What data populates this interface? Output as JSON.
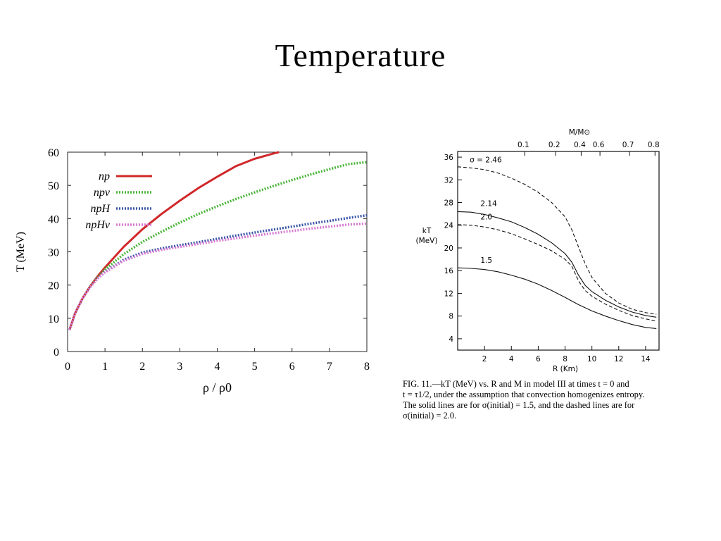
{
  "slide": {
    "title": "Temperature"
  },
  "chart_data": [
    {
      "type": "line",
      "ylabel": "T (MeV)",
      "xlabel": "ρ / ρ0",
      "xlim": [
        0,
        8
      ],
      "ylim": [
        0,
        60
      ],
      "xticks": [
        0,
        1,
        2,
        3,
        4,
        5,
        6,
        7,
        8
      ],
      "yticks": [
        0,
        10,
        20,
        30,
        40,
        50,
        60
      ],
      "legend_position": "top-left",
      "series": [
        {
          "name": "np",
          "color": "#d0282a",
          "style": "solid",
          "x": [
            0.05,
            0.2,
            0.4,
            0.6,
            0.8,
            1.0,
            1.5,
            2.0,
            2.5,
            3.0,
            3.5,
            4.0,
            4.5,
            5.0,
            5.5,
            5.65
          ],
          "y": [
            6.5,
            11.5,
            16.0,
            19.6,
            22.6,
            25.3,
            31.5,
            36.8,
            41.3,
            45.4,
            49.2,
            52.6,
            55.8,
            58.0,
            59.6,
            60.0
          ]
        },
        {
          "name": "npν",
          "color": "#4bb53a",
          "style": "dotted",
          "x": [
            0.05,
            0.2,
            0.4,
            0.6,
            0.8,
            1.0,
            1.5,
            2.0,
            2.5,
            3.0,
            3.5,
            4.0,
            4.5,
            5.0,
            5.5,
            6.0,
            6.5,
            7.0,
            7.5,
            8.0
          ],
          "y": [
            6.5,
            11.5,
            16.0,
            19.5,
            22.3,
            24.7,
            29.3,
            33.0,
            36.0,
            38.8,
            41.4,
            43.7,
            45.9,
            47.9,
            49.8,
            51.6,
            53.3,
            54.9,
            56.4,
            57.0
          ]
        },
        {
          "name": "npH",
          "color": "#3a56a8",
          "style": "dotted",
          "x": [
            0.05,
            0.2,
            0.4,
            0.6,
            0.8,
            1.0,
            1.5,
            2.0,
            2.5,
            3.0,
            3.5,
            4.0,
            4.5,
            5.0,
            5.5,
            6.0,
            6.5,
            7.0,
            7.5,
            8.0
          ],
          "y": [
            6.5,
            11.5,
            16.0,
            19.4,
            22.0,
            24.0,
            27.6,
            29.8,
            31.0,
            32.0,
            32.9,
            33.9,
            34.9,
            35.8,
            36.7,
            37.6,
            38.5,
            39.3,
            40.2,
            41.0
          ]
        },
        {
          "name": "npHν",
          "color": "#d67ad0",
          "style": "dotted",
          "x": [
            0.05,
            0.2,
            0.4,
            0.6,
            0.8,
            1.0,
            1.5,
            2.0,
            2.5,
            3.0,
            3.5,
            4.0,
            4.5,
            5.0,
            5.5,
            6.0,
            6.5,
            7.0,
            7.5,
            8.0
          ],
          "y": [
            6.5,
            11.5,
            16.0,
            19.3,
            21.9,
            23.8,
            27.3,
            29.4,
            30.6,
            31.5,
            32.4,
            33.3,
            34.1,
            34.9,
            35.6,
            36.3,
            37.0,
            37.6,
            38.2,
            38.5
          ]
        }
      ]
    },
    {
      "type": "line",
      "ylabel": "kT\n(MeV)",
      "xlabel": "R (Km)",
      "top_axis_label": "M/M⊙",
      "top_ticks": [
        "0.1",
        "0.2",
        "0.4",
        "0.6",
        "0.7",
        "0.8"
      ],
      "xlim": [
        0,
        15
      ],
      "ylim": [
        2,
        37
      ],
      "xticks": [
        2,
        4,
        6,
        8,
        10,
        12,
        14
      ],
      "yticks": [
        4,
        8,
        12,
        16,
        20,
        24,
        28,
        32,
        36
      ],
      "series": [
        {
          "name": "σ = 2.46",
          "label": "σ = 2.46",
          "style": "dashed",
          "x": [
            0,
            1,
            2,
            3,
            4,
            5,
            6,
            7,
            8,
            8.5,
            9,
            9.5,
            10,
            11,
            12,
            13,
            14,
            14.8
          ],
          "y": [
            34.3,
            34.1,
            33.8,
            33.2,
            32.3,
            31.2,
            29.8,
            28.0,
            25.5,
            23.2,
            20.2,
            17.2,
            14.8,
            12.0,
            10.3,
            9.2,
            8.6,
            8.3
          ]
        },
        {
          "name": "2.14",
          "label": "2.14",
          "style": "solid",
          "x": [
            0,
            1,
            2,
            3,
            4,
            5,
            6,
            7,
            8,
            8.5,
            9,
            9.5,
            10,
            11,
            12,
            13,
            14,
            14.8
          ],
          "y": [
            26.4,
            26.3,
            25.9,
            25.3,
            24.6,
            23.6,
            22.4,
            20.9,
            19.0,
            17.5,
            15.2,
            13.4,
            12.3,
            10.8,
            9.6,
            8.7,
            8.1,
            7.8
          ]
        },
        {
          "name": "2.0",
          "label": "2.0",
          "style": "dashed",
          "x": [
            0,
            1,
            2,
            3,
            4,
            5,
            6,
            7,
            8,
            8.5,
            9,
            9.5,
            10,
            11,
            12,
            13,
            14,
            14.8
          ],
          "y": [
            24.1,
            24.0,
            23.7,
            23.2,
            22.5,
            21.6,
            20.6,
            19.5,
            18.0,
            16.8,
            14.2,
            12.5,
            11.5,
            10.1,
            9.0,
            8.1,
            7.5,
            7.1
          ]
        },
        {
          "name": "1.5",
          "label": "1.5",
          "style": "solid",
          "x": [
            0,
            1,
            2,
            3,
            4,
            5,
            6,
            7,
            8,
            9,
            10,
            11,
            12,
            13,
            14,
            14.8
          ],
          "y": [
            16.5,
            16.4,
            16.2,
            15.8,
            15.2,
            14.5,
            13.6,
            12.5,
            11.3,
            10.0,
            8.9,
            8.0,
            7.2,
            6.5,
            6.0,
            5.8
          ]
        }
      ],
      "caption_lines": [
        "FIG. 11.—kT (MeV) vs. R and M in model III at times t = 0 and",
        "t = τ1/2, under the assumption that convection homogenizes entropy.",
        "The solid lines are for σ(initial) = 1.5, and the dashed lines are for",
        "σ(initial) = 2.0."
      ]
    }
  ]
}
